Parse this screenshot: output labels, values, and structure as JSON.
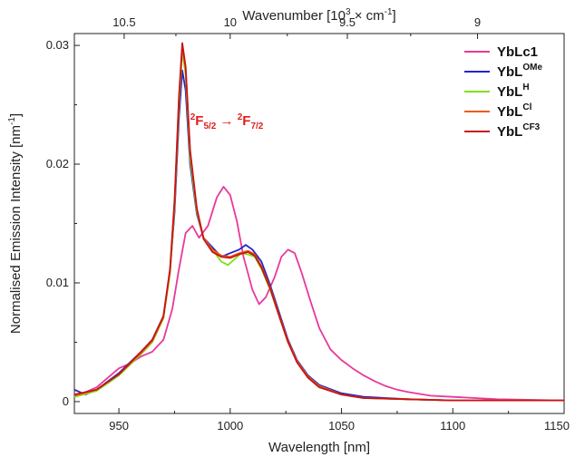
{
  "chart_data": {
    "type": "line",
    "xlabel": "Wavelength [nm]",
    "ylabel": "Normalised Emission Intensity [nm",
    "ylabel_sup": "-1",
    "ylabel_end": "]",
    "top_axis_label": "Wavenumber [10",
    "top_axis_label_sup": "3",
    "top_axis_label_end": " × cm",
    "top_axis_label_sup2": "-1",
    "top_axis_label_close": "]",
    "xlim": [
      930,
      1150
    ],
    "ylim": [
      -0.001,
      0.031
    ],
    "x_ticks": [
      950,
      1000,
      1050,
      1100,
      1150
    ],
    "y_ticks": [
      0,
      0.01,
      0.02,
      0.03
    ],
    "y_tick_labels": [
      "0",
      "0.01",
      "0.02",
      "0.03"
    ],
    "top_ticks_wavenumber": [
      10.5,
      10,
      9.5,
      9
    ],
    "top_tick_labels": [
      "10.5",
      "10",
      "9.5",
      "9"
    ],
    "legend_position": "top-right",
    "annotation": {
      "p1": "2",
      "p2": "F",
      "p3": "5/2",
      "arrow": " → ",
      "p4": "2",
      "p5": "F",
      "p6": "7/2",
      "at_x": 991,
      "at_y": 0.0233
    },
    "series": [
      {
        "name": "YbLc1",
        "name_sup": "",
        "color": "#e8399a",
        "x": [
          930,
          940,
          950,
          955,
          960,
          965,
          970,
          974,
          977,
          980,
          983,
          986,
          990,
          994,
          997,
          1000,
          1003,
          1006,
          1010,
          1013,
          1016,
          1020,
          1023,
          1026,
          1029,
          1032,
          1036,
          1040,
          1045,
          1050,
          1055,
          1060,
          1065,
          1070,
          1075,
          1080,
          1090,
          1100,
          1120,
          1150
        ],
        "y": [
          0.0004,
          0.0012,
          0.0028,
          0.0032,
          0.0038,
          0.0042,
          0.0052,
          0.0078,
          0.0112,
          0.0142,
          0.0148,
          0.0138,
          0.0148,
          0.0172,
          0.0181,
          0.0174,
          0.0152,
          0.0122,
          0.0094,
          0.0082,
          0.0088,
          0.0105,
          0.0122,
          0.0128,
          0.0125,
          0.0109,
          0.0085,
          0.0062,
          0.0044,
          0.0035,
          0.0028,
          0.0022,
          0.0017,
          0.0013,
          0.001,
          0.0008,
          0.0005,
          0.0004,
          0.0002,
          0.0001
        ]
      },
      {
        "name": "YbL",
        "name_sup": "OMe",
        "color": "#2323c8",
        "x": [
          930,
          935,
          940,
          950,
          960,
          965,
          970,
          973,
          975,
          977,
          978.5,
          980,
          982,
          985,
          988,
          992,
          996,
          1000,
          1004,
          1007,
          1010,
          1014,
          1018,
          1022,
          1026,
          1030,
          1035,
          1040,
          1050,
          1060,
          1080,
          1100,
          1150
        ],
        "y": [
          0.001,
          0.0006,
          0.001,
          0.0024,
          0.0042,
          0.0052,
          0.0072,
          0.011,
          0.016,
          0.024,
          0.0279,
          0.0262,
          0.02,
          0.0158,
          0.0138,
          0.013,
          0.0122,
          0.0125,
          0.0128,
          0.0132,
          0.0128,
          0.0118,
          0.0098,
          0.0075,
          0.0052,
          0.0035,
          0.0022,
          0.0014,
          0.0007,
          0.0004,
          0.0002,
          0.0001,
          0.0001
        ]
      },
      {
        "name": "YbL",
        "name_sup": "H",
        "color": "#7fe01a",
        "x": [
          930,
          940,
          950,
          960,
          965,
          970,
          973,
          975,
          977,
          978.5,
          980,
          982,
          985,
          988,
          992,
          996,
          999,
          1002,
          1005,
          1008,
          1011,
          1014,
          1018,
          1022,
          1026,
          1030,
          1035,
          1040,
          1050,
          1060,
          1080,
          1100,
          1150
        ],
        "y": [
          0.0004,
          0.0009,
          0.0022,
          0.004,
          0.005,
          0.007,
          0.0108,
          0.0165,
          0.025,
          0.0295,
          0.0275,
          0.0205,
          0.016,
          0.0138,
          0.0128,
          0.0118,
          0.0115,
          0.012,
          0.0125,
          0.0124,
          0.0122,
          0.0112,
          0.0094,
          0.0072,
          0.005,
          0.0034,
          0.0021,
          0.0013,
          0.0006,
          0.0003,
          0.0002,
          0.0001,
          0.0001
        ]
      },
      {
        "name": "YbL",
        "name_sup": "Cl",
        "color": "#f05a10",
        "x": [
          930,
          940,
          950,
          960,
          965,
          970,
          973,
          975,
          977,
          978.5,
          980,
          982,
          985,
          988,
          992,
          996,
          1000,
          1004,
          1008,
          1011,
          1014,
          1018,
          1022,
          1026,
          1030,
          1035,
          1040,
          1050,
          1060,
          1080,
          1100,
          1150
        ],
        "y": [
          0.0005,
          0.001,
          0.0023,
          0.0041,
          0.0051,
          0.0071,
          0.011,
          0.0168,
          0.0255,
          0.0299,
          0.028,
          0.021,
          0.0162,
          0.0138,
          0.0128,
          0.0123,
          0.0122,
          0.0125,
          0.0127,
          0.0124,
          0.0114,
          0.0096,
          0.0073,
          0.0051,
          0.0034,
          0.0021,
          0.0013,
          0.0006,
          0.0003,
          0.0002,
          0.0001,
          0.0001
        ]
      },
      {
        "name": "YbL",
        "name_sup": "CF3",
        "color": "#c81414",
        "x": [
          930,
          940,
          950,
          960,
          965,
          970,
          973,
          975,
          977,
          978.5,
          980,
          982,
          985,
          988,
          992,
          996,
          1000,
          1004,
          1008,
          1011,
          1014,
          1018,
          1022,
          1026,
          1030,
          1035,
          1040,
          1050,
          1060,
          1080,
          1100,
          1150
        ],
        "y": [
          0.0006,
          0.001,
          0.0023,
          0.0042,
          0.0052,
          0.0072,
          0.0112,
          0.017,
          0.0258,
          0.0302,
          0.0282,
          0.0212,
          0.0163,
          0.0137,
          0.0126,
          0.0122,
          0.0121,
          0.0124,
          0.0126,
          0.0123,
          0.0113,
          0.0095,
          0.0072,
          0.005,
          0.0033,
          0.002,
          0.0012,
          0.0006,
          0.0003,
          0.0002,
          0.0001,
          0.0001
        ]
      }
    ]
  }
}
